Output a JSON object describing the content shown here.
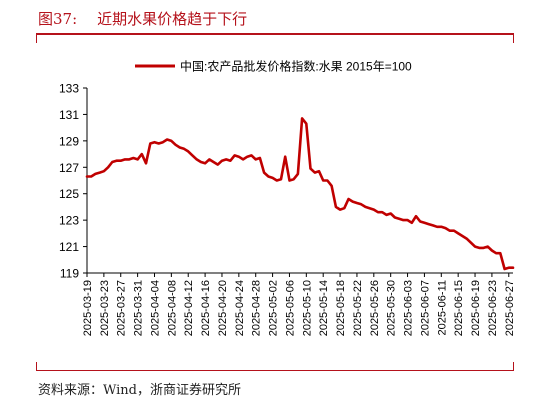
{
  "figure": {
    "number": "图37:",
    "title": "近期水果价格趋于下行",
    "source": "资料来源：Wind，浙商证券研究所",
    "accent_color": "#b5121b"
  },
  "chart_data": {
    "type": "line",
    "title": "",
    "xlabel": "",
    "ylabel": "",
    "ylim": [
      119,
      133
    ],
    "y_ticks": [
      119,
      121,
      123,
      125,
      127,
      129,
      131,
      133
    ],
    "grid": false,
    "legend_position": "top-center",
    "x_tick_labels": [
      "2025-03-19",
      "2025-03-23",
      "2025-03-27",
      "2025-03-31",
      "2025-04-04",
      "2025-04-08",
      "2025-04-12",
      "2025-04-16",
      "2025-04-20",
      "2025-04-24",
      "2025-04-28",
      "2025-05-02",
      "2025-05-06",
      "2025-05-10",
      "2025-05-14",
      "2025-05-18",
      "2025-05-22",
      "2025-05-26",
      "2025-05-30",
      "2025-06-03",
      "2025-06-07",
      "2025-06-11",
      "2025-06-15",
      "2025-06-19",
      "2025-06-23",
      "2025-06-27"
    ],
    "x_start": "2025-03-19",
    "x_end": "2025-06-28",
    "series": [
      {
        "name": "中国:农产品批发价格指数:水果  2015年=100",
        "color": "#c00000",
        "points": [
          [
            "2025-03-19",
            126.3
          ],
          [
            "2025-03-20",
            126.3
          ],
          [
            "2025-03-21",
            126.5
          ],
          [
            "2025-03-22",
            126.6
          ],
          [
            "2025-03-23",
            126.7
          ],
          [
            "2025-03-24",
            127.0
          ],
          [
            "2025-03-25",
            127.4
          ],
          [
            "2025-03-26",
            127.5
          ],
          [
            "2025-03-27",
            127.5
          ],
          [
            "2025-03-28",
            127.6
          ],
          [
            "2025-03-29",
            127.6
          ],
          [
            "2025-03-30",
            127.7
          ],
          [
            "2025-03-31",
            127.6
          ],
          [
            "2025-04-01",
            128.0
          ],
          [
            "2025-04-02",
            127.3
          ],
          [
            "2025-04-03",
            128.8
          ],
          [
            "2025-04-04",
            128.9
          ],
          [
            "2025-04-05",
            128.8
          ],
          [
            "2025-04-06",
            128.9
          ],
          [
            "2025-04-07",
            129.1
          ],
          [
            "2025-04-08",
            129.0
          ],
          [
            "2025-04-09",
            128.7
          ],
          [
            "2025-04-10",
            128.5
          ],
          [
            "2025-04-11",
            128.4
          ],
          [
            "2025-04-12",
            128.2
          ],
          [
            "2025-04-13",
            127.9
          ],
          [
            "2025-04-14",
            127.6
          ],
          [
            "2025-04-15",
            127.4
          ],
          [
            "2025-04-16",
            127.3
          ],
          [
            "2025-04-17",
            127.6
          ],
          [
            "2025-04-18",
            127.4
          ],
          [
            "2025-04-19",
            127.2
          ],
          [
            "2025-04-20",
            127.5
          ],
          [
            "2025-04-21",
            127.6
          ],
          [
            "2025-04-22",
            127.5
          ],
          [
            "2025-04-23",
            127.9
          ],
          [
            "2025-04-24",
            127.8
          ],
          [
            "2025-04-25",
            127.6
          ],
          [
            "2025-04-26",
            127.8
          ],
          [
            "2025-04-27",
            127.9
          ],
          [
            "2025-04-28",
            127.6
          ],
          [
            "2025-04-29",
            127.7
          ],
          [
            "2025-04-30",
            126.6
          ],
          [
            "2025-05-01",
            126.3
          ],
          [
            "2025-05-02",
            126.2
          ],
          [
            "2025-05-03",
            126.0
          ],
          [
            "2025-05-04",
            126.1
          ],
          [
            "2025-05-05",
            127.8
          ],
          [
            "2025-05-06",
            126.0
          ],
          [
            "2025-05-07",
            126.1
          ],
          [
            "2025-05-08",
            126.5
          ],
          [
            "2025-05-09",
            130.7
          ],
          [
            "2025-05-10",
            130.3
          ],
          [
            "2025-05-11",
            126.9
          ],
          [
            "2025-05-12",
            126.6
          ],
          [
            "2025-05-13",
            126.7
          ],
          [
            "2025-05-14",
            126.0
          ],
          [
            "2025-05-15",
            126.0
          ],
          [
            "2025-05-16",
            125.6
          ],
          [
            "2025-05-17",
            124.0
          ],
          [
            "2025-05-18",
            123.8
          ],
          [
            "2025-05-19",
            123.9
          ],
          [
            "2025-05-20",
            124.6
          ],
          [
            "2025-05-21",
            124.4
          ],
          [
            "2025-05-22",
            124.3
          ],
          [
            "2025-05-23",
            124.2
          ],
          [
            "2025-05-24",
            124.0
          ],
          [
            "2025-05-25",
            123.9
          ],
          [
            "2025-05-26",
            123.8
          ],
          [
            "2025-05-27",
            123.6
          ],
          [
            "2025-05-28",
            123.6
          ],
          [
            "2025-05-29",
            123.4
          ],
          [
            "2025-05-30",
            123.5
          ],
          [
            "2025-05-31",
            123.2
          ],
          [
            "2025-06-01",
            123.1
          ],
          [
            "2025-06-02",
            123.0
          ],
          [
            "2025-06-03",
            123.0
          ],
          [
            "2025-06-04",
            122.8
          ],
          [
            "2025-06-05",
            123.3
          ],
          [
            "2025-06-06",
            122.9
          ],
          [
            "2025-06-07",
            122.8
          ],
          [
            "2025-06-08",
            122.7
          ],
          [
            "2025-06-09",
            122.6
          ],
          [
            "2025-06-10",
            122.5
          ],
          [
            "2025-06-11",
            122.5
          ],
          [
            "2025-06-12",
            122.4
          ],
          [
            "2025-06-13",
            122.2
          ],
          [
            "2025-06-14",
            122.2
          ],
          [
            "2025-06-15",
            122.0
          ],
          [
            "2025-06-16",
            121.8
          ],
          [
            "2025-06-17",
            121.6
          ],
          [
            "2025-06-18",
            121.3
          ],
          [
            "2025-06-19",
            121.0
          ],
          [
            "2025-06-20",
            120.9
          ],
          [
            "2025-06-21",
            120.9
          ],
          [
            "2025-06-22",
            121.0
          ],
          [
            "2025-06-23",
            120.7
          ],
          [
            "2025-06-24",
            120.5
          ],
          [
            "2025-06-25",
            120.5
          ],
          [
            "2025-06-26",
            119.3
          ],
          [
            "2025-06-27",
            119.4
          ],
          [
            "2025-06-28",
            119.4
          ]
        ]
      }
    ]
  }
}
